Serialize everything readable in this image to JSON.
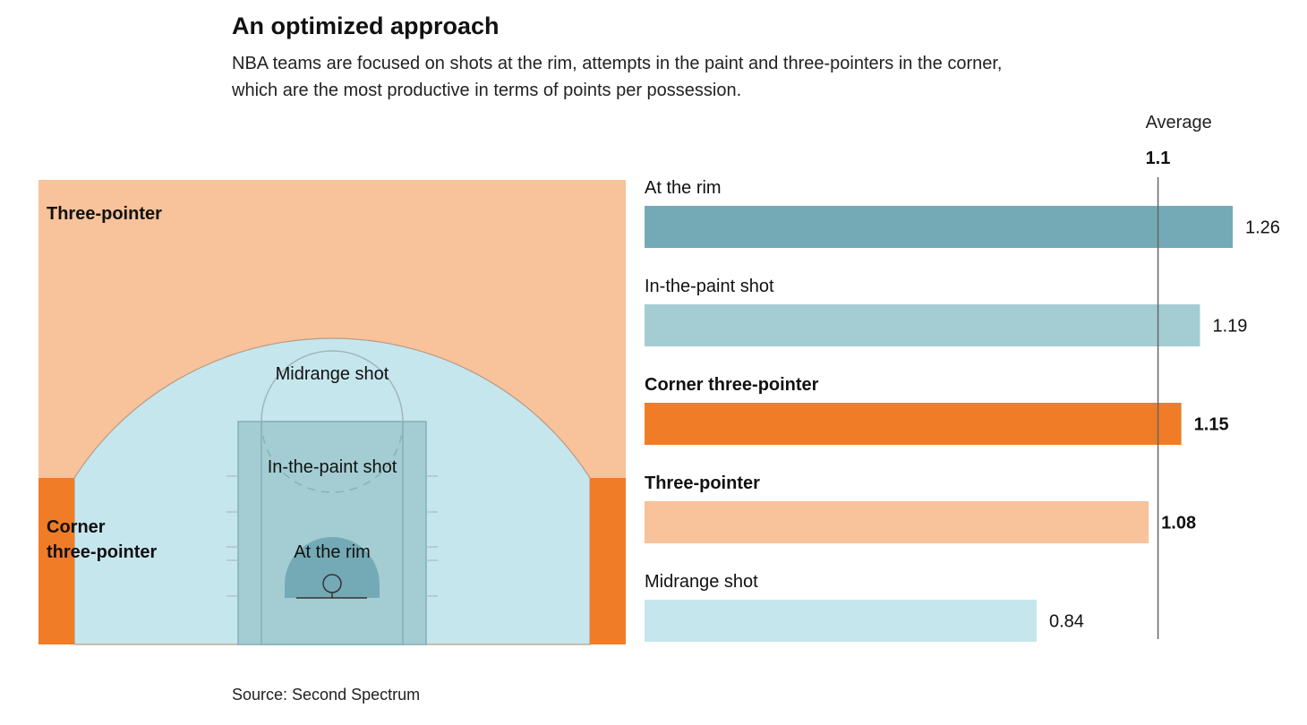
{
  "title": "An optimized approach",
  "subtitle": "NBA teams are focused on shots at the rim, attempts in the paint and three-pointers in the corner, which are the most productive in terms of points per possession.",
  "source": "Source: Second Spectrum",
  "court": {
    "labels": {
      "three_pointer": "Three-pointer",
      "corner_line1": "Corner",
      "corner_line2": "three-pointer",
      "midrange": "Midrange shot",
      "paint": "In-the-paint shot",
      "rim": "At the rim"
    },
    "colors": {
      "three_pointer": "#f8c29a",
      "corner": "#f07c28",
      "inside_arc": "#c6e6ee",
      "paint": "#a3cdd3",
      "rim": "#74aab6"
    }
  },
  "chart_data": {
    "type": "bar",
    "orientation": "horizontal",
    "categories": [
      "At the rim",
      "In-the-paint shot",
      "Corner three-pointer",
      "Three-pointer",
      "Midrange shot"
    ],
    "values": [
      1.26,
      1.19,
      1.15,
      1.08,
      0.84
    ],
    "value_labels": [
      "1.26",
      "1.19",
      "1.15",
      "1.08",
      "0.84"
    ],
    "bold": [
      false,
      false,
      true,
      true,
      false
    ],
    "colors": [
      "#74aab6",
      "#a3cdd3",
      "#f07c28",
      "#f8c29a",
      "#c6e6ee"
    ],
    "xlim": [
      0,
      1.26
    ],
    "reference_line": {
      "label": "Average",
      "value": 1.1,
      "value_label": "1.1"
    }
  }
}
